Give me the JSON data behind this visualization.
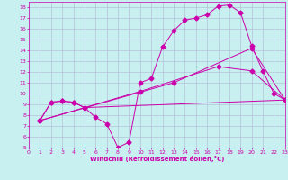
{
  "xlabel": "Windchill (Refroidissement éolien,°C)",
  "bg_color": "#c8f0f0",
  "grid_color": "#b0b8d0",
  "line_color": "#cc00aa",
  "xlim": [
    0,
    23
  ],
  "ylim": [
    5,
    18.5
  ],
  "xticks": [
    0,
    1,
    2,
    3,
    4,
    5,
    6,
    7,
    8,
    9,
    10,
    11,
    12,
    13,
    14,
    15,
    16,
    17,
    18,
    19,
    20,
    21,
    22,
    23
  ],
  "yticks": [
    5,
    6,
    7,
    8,
    9,
    10,
    11,
    12,
    13,
    14,
    15,
    16,
    17,
    18
  ],
  "curve1_x": [
    1,
    2,
    3,
    4,
    5,
    6,
    7,
    8,
    9,
    10,
    11,
    12,
    13,
    14,
    15,
    16,
    17,
    18,
    19,
    20,
    21,
    22,
    23
  ],
  "curve1_y": [
    7.5,
    9.2,
    9.3,
    9.2,
    8.7,
    7.8,
    7.2,
    5.0,
    5.5,
    11.0,
    11.4,
    14.3,
    15.8,
    16.8,
    17.0,
    17.3,
    18.1,
    18.2,
    17.5,
    14.4,
    12.1,
    10.0,
    9.4
  ],
  "curve2_x": [
    1,
    2,
    3,
    4,
    5,
    23
  ],
  "curve2_y": [
    7.5,
    9.2,
    9.3,
    9.2,
    8.7,
    9.4
  ],
  "curve3_x": [
    1,
    10,
    17,
    20,
    23
  ],
  "curve3_y": [
    7.5,
    10.2,
    12.5,
    12.1,
    9.4
  ],
  "curve4_x": [
    1,
    13,
    20,
    23
  ],
  "curve4_y": [
    7.5,
    11.0,
    14.2,
    9.4
  ],
  "markersize": 2.5,
  "linewidth": 0.7,
  "tick_fontsize": 4.5,
  "xlabel_fontsize": 5.0
}
